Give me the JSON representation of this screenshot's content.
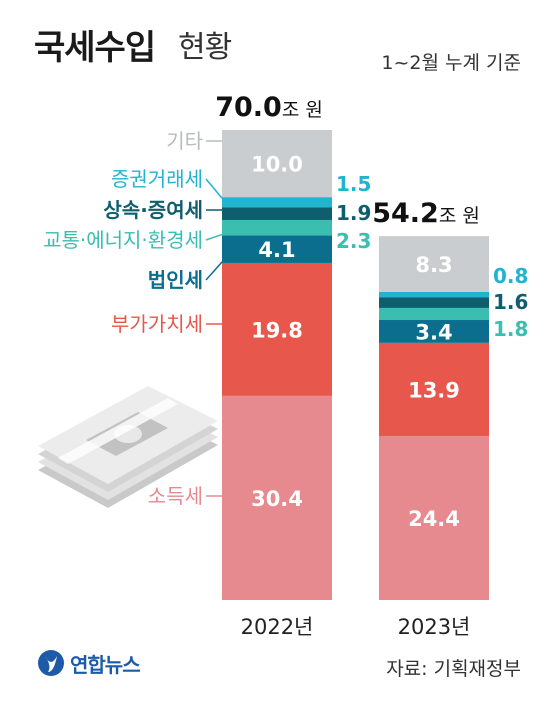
{
  "header": {
    "title_bold": "국세수입",
    "title_light": "현황",
    "note": "1~2월 누계 기준"
  },
  "footer": {
    "source": "자료: 기획재정부",
    "logo_text": "연합뉴스"
  },
  "chart_data": {
    "type": "bar",
    "stacked": true,
    "categories": [
      "2022년",
      "2023년"
    ],
    "totals": [
      70.0,
      54.2
    ],
    "total_value_labels": [
      "70.0",
      "54.2"
    ],
    "total_unit": "조 원",
    "series": [
      {
        "name": "소득세",
        "values": [
          30.4,
          24.4
        ],
        "color": "#e68a90",
        "text_color": "#e68a90"
      },
      {
        "name": "부가가치세",
        "values": [
          19.8,
          13.9
        ],
        "color": "#e8574b",
        "text_color": "#e8574b"
      },
      {
        "name": "법인세",
        "values": [
          4.1,
          3.4
        ],
        "color": "#0b6e8f",
        "text_color": "#0b6e8f"
      },
      {
        "name": "교통·에너지·환경세",
        "values": [
          2.3,
          1.8
        ],
        "color": "#3bbdb0",
        "text_color": "#3bbdb0"
      },
      {
        "name": "상속·증여세",
        "values": [
          1.9,
          1.6
        ],
        "color": "#0e5e6e",
        "text_color": "#0e5e6e"
      },
      {
        "name": "증권거래세",
        "values": [
          1.5,
          0.8
        ],
        "color": "#21b4cf",
        "text_color": "#21b4cf"
      },
      {
        "name": "기타",
        "values": [
          10.0,
          8.3
        ],
        "color": "#cacdcf",
        "text_color": "#b8bcbe"
      }
    ]
  }
}
